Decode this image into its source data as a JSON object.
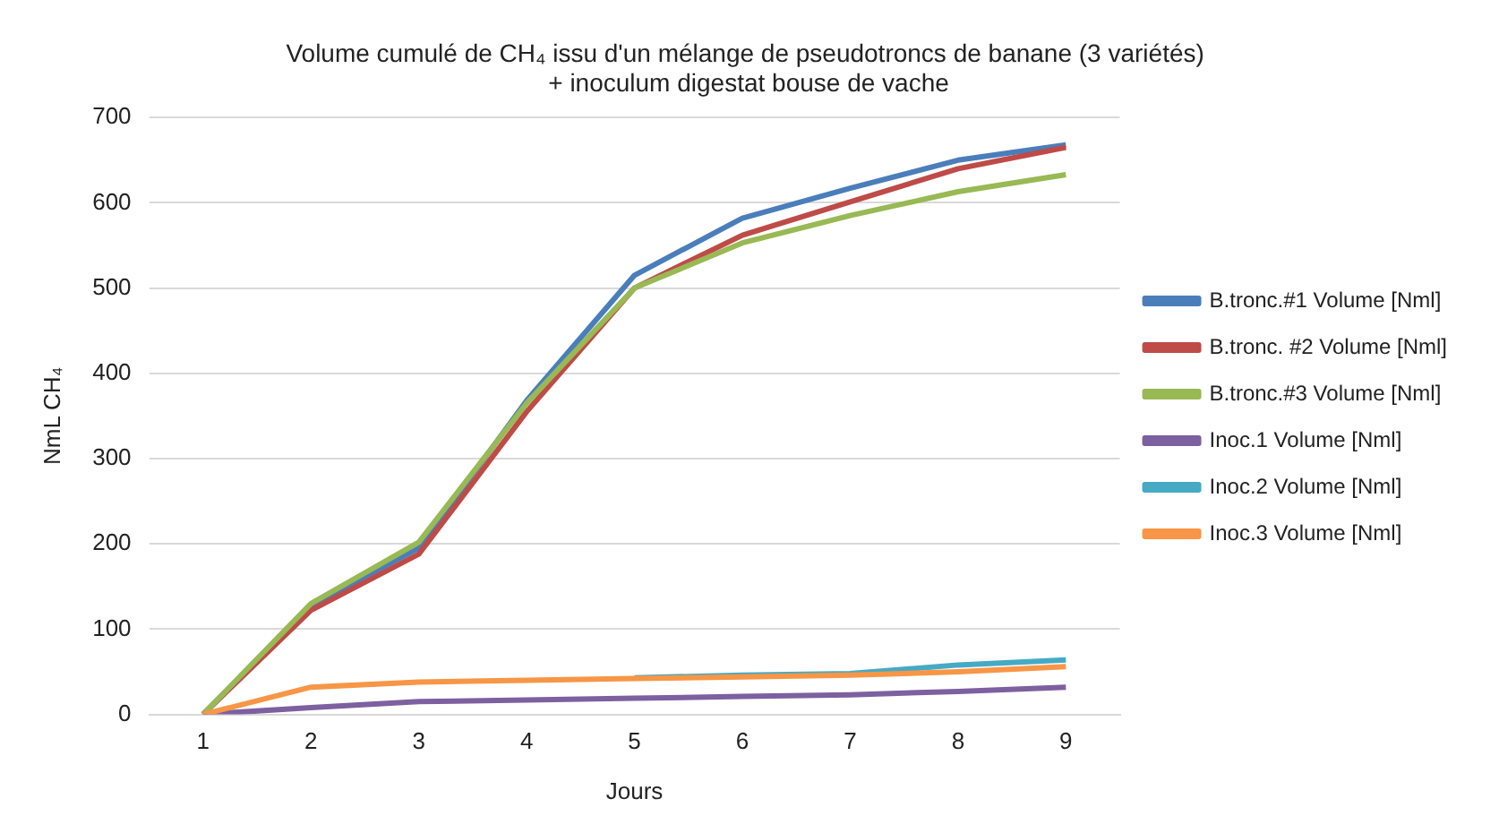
{
  "chart_data": {
    "type": "line",
    "title": "Volume cumulé de CH₄ issu d'un mélange de pseudotroncs de banane (3 variétés)  + inoculum digestat bouse de vache",
    "xlabel": "Jours",
    "ylabel": "NmL CH₄",
    "categories": [
      "1",
      "2",
      "3",
      "4",
      "5",
      "6",
      "7",
      "8",
      "9"
    ],
    "series": [
      {
        "name": "B.tronc.#1 Volume [Nml]",
        "color": "#4a7ebb",
        "values": [
          0,
          128,
          195,
          368,
          515,
          582,
          617,
          650,
          668
        ]
      },
      {
        "name": "B.tronc. #2 Volume [Nml]",
        "color": "#be4b48",
        "values": [
          0,
          122,
          188,
          355,
          500,
          562,
          601,
          640,
          665
        ]
      },
      {
        "name": "B.tronc.#3 Volume [Nml]",
        "color": "#98b954",
        "values": [
          0,
          130,
          202,
          365,
          500,
          553,
          585,
          613,
          633
        ]
      },
      {
        "name": "Inoc.1 Volume [Nml]",
        "color": "#7d60a0",
        "values": [
          0,
          8,
          15,
          17,
          19,
          21,
          23,
          27,
          32
        ]
      },
      {
        "name": "Inoc.2 Volume [Nml]",
        "color": "#46aac5",
        "values": [
          null,
          null,
          null,
          null,
          43,
          46,
          48,
          58,
          64
        ]
      },
      {
        "name": "Inoc.3 Volume [Nml]",
        "color": "#f79646",
        "values": [
          0,
          32,
          38,
          40,
          42,
          44,
          46,
          50,
          56
        ]
      }
    ],
    "ylim": [
      0,
      700
    ],
    "yticks": [
      0,
      100,
      200,
      300,
      400,
      500,
      600,
      700
    ],
    "grid": "y",
    "legend": "right",
    "marker": "none",
    "line_style": "solid"
  }
}
